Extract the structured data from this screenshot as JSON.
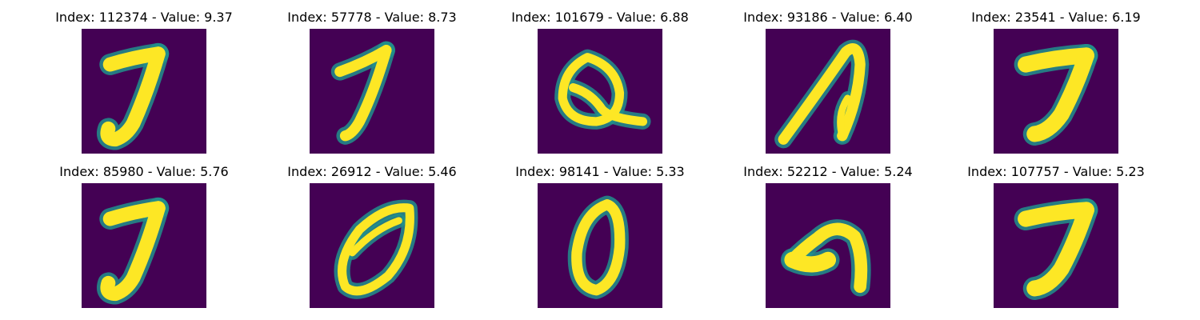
{
  "colors": {
    "background": "#440154",
    "mid": "#21918c",
    "foreground": "#fde725"
  },
  "panels": [
    {
      "index": "112374",
      "value": "9.37",
      "label": "Index: 112374 - Value: 9.37",
      "glyph": "seven-curl"
    },
    {
      "index": "57778",
      "value": "8.73",
      "label": "Index: 57778 - Value: 8.73",
      "glyph": "seven-hook"
    },
    {
      "index": "101679",
      "value": "6.88",
      "label": "Index: 101679 - Value: 6.88",
      "glyph": "q-loop"
    },
    {
      "index": "93186",
      "value": "6.40",
      "label": "Index: 93186 - Value: 6.40",
      "glyph": "arch"
    },
    {
      "index": "23541",
      "value": "6.19",
      "label": "Index: 23541 - Value: 6.19",
      "glyph": "seven-bold"
    },
    {
      "index": "85980",
      "value": "5.76",
      "label": "Index: 85980 - Value: 5.76",
      "glyph": "seven-curl"
    },
    {
      "index": "26912",
      "value": "5.46",
      "label": "Index: 26912 - Value: 5.46",
      "glyph": "zero-slant"
    },
    {
      "index": "98141",
      "value": "5.33",
      "label": "Index: 98141 - Value: 5.33",
      "glyph": "zero-thin"
    },
    {
      "index": "52212",
      "value": "5.24",
      "label": "Index: 52212 - Value: 5.24",
      "glyph": "hook-blob"
    },
    {
      "index": "107757",
      "value": "5.23",
      "label": "Index: 107757 - Value: 5.23",
      "glyph": "seven-bold"
    }
  ]
}
